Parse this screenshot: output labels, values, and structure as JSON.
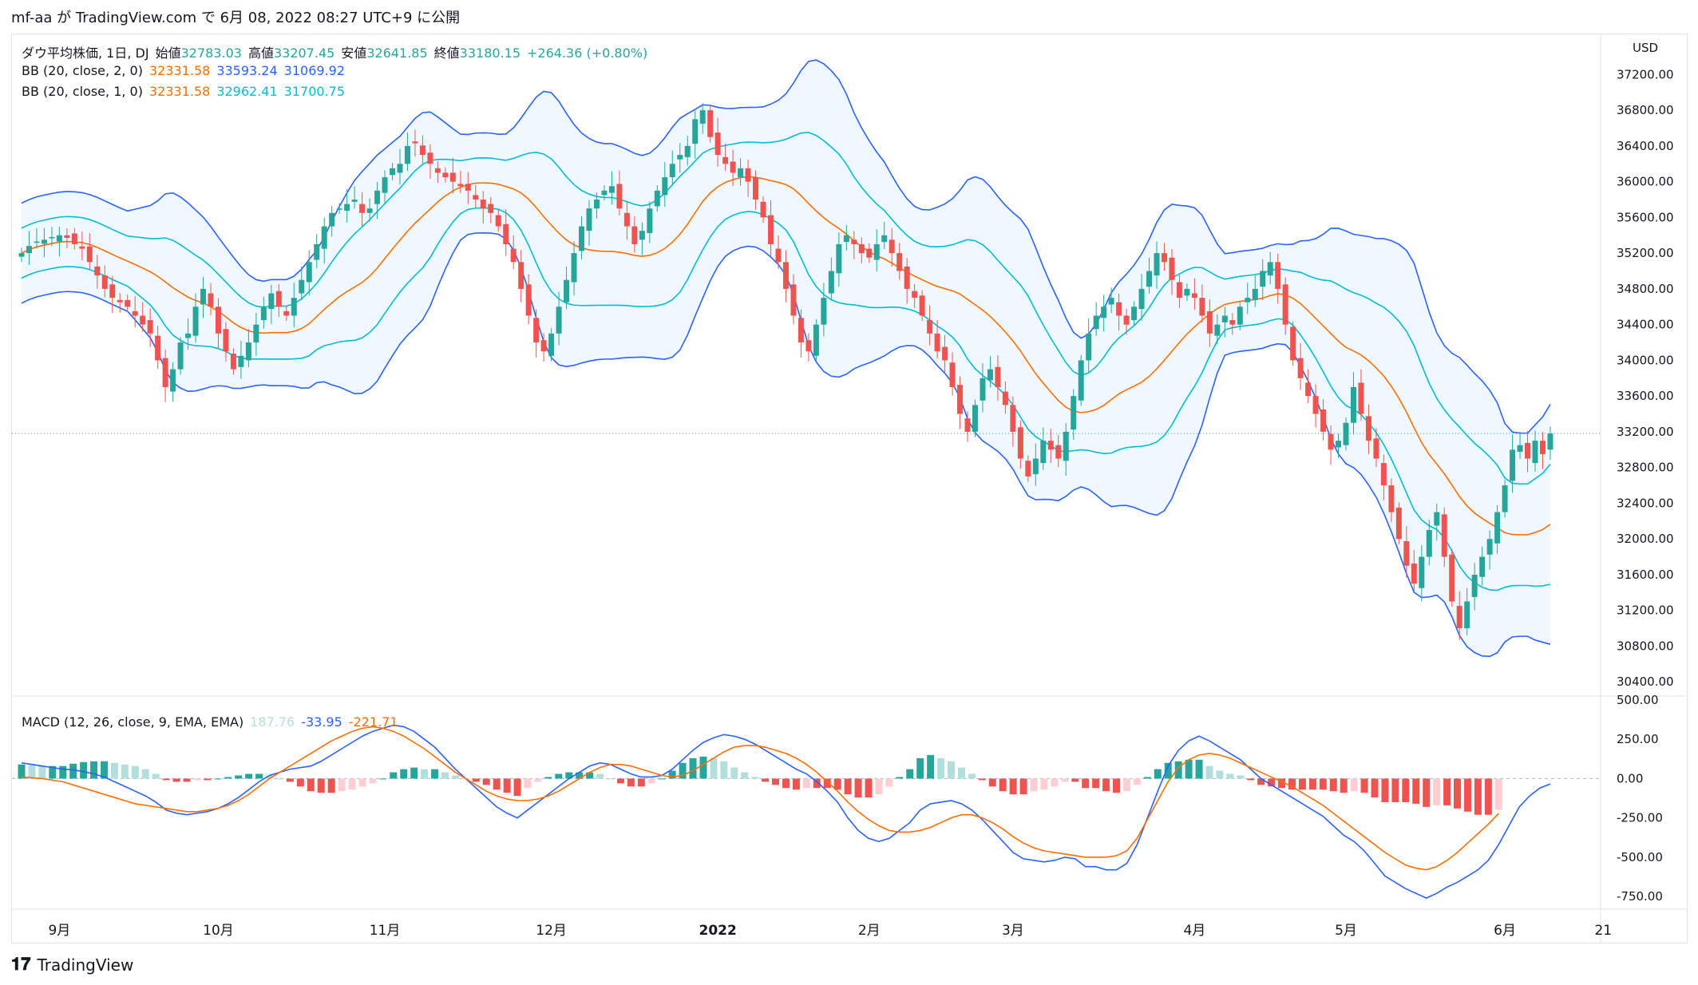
{
  "header": {
    "publish_text": "mf-aa が TradingView.com で 6月 08, 2022 08:27 UTC+9 に公開"
  },
  "legend_main": {
    "symbol": "ダウ平均株価, 1日, DJ",
    "open_label": "始値",
    "open": "32783.03",
    "high_label": "高値",
    "high": "33207.45",
    "low_label": "安値",
    "low": "32641.85",
    "close_label": "終値",
    "close": "33180.15",
    "change": "+264.36 (+0.80%)"
  },
  "legend_bb2": {
    "name": "BB (20, close, 2, 0)",
    "basis": "32331.58",
    "upper": "33593.24",
    "lower": "31069.92"
  },
  "legend_bb1": {
    "name": "BB (20, close, 1, 0)",
    "basis": "32331.58",
    "upper": "32962.41",
    "lower": "31700.75"
  },
  "legend_macd": {
    "name": "MACD (12, 26, close, 9, EMA, EMA)",
    "hist": "187.76",
    "macd": "-33.95",
    "signal": "-221.71"
  },
  "footer": {
    "brand": "TradingView",
    "logo_glyph": "𝟏𝟕"
  },
  "colors": {
    "up": "#26a69a",
    "down": "#ef5350",
    "bb_outer": "#2962ff",
    "bb_inner": "#00bcd4",
    "basis": "#ff6d00",
    "hist_up_strong": "#26a69a",
    "hist_up_weak": "#b2dfdb",
    "hist_down_strong": "#ef5350",
    "hist_down_weak": "#ffcdd2"
  },
  "chart_data": {
    "type": "candlestick",
    "currency": "USD",
    "price_ticks": [
      "37200.00",
      "36800.00",
      "36400.00",
      "36000.00",
      "35600.00",
      "35200.00",
      "34800.00",
      "34400.00",
      "34000.00",
      "33600.00",
      "33200.00",
      "32800.00",
      "32400.00",
      "32000.00",
      "31600.00",
      "31200.00",
      "30800.00",
      "30400.00"
    ],
    "price_range": [
      30250,
      37650
    ],
    "macd_ticks": [
      "500.00",
      "250.00",
      "0.00",
      "-250.00",
      "-500.00",
      "-750.00"
    ],
    "macd_range": [
      -800,
      520
    ],
    "time_labels": [
      {
        "label": "9月",
        "bar": 5
      },
      {
        "label": "10月",
        "bar": 26
      },
      {
        "label": "11月",
        "bar": 48
      },
      {
        "label": "12月",
        "bar": 70
      },
      {
        "label": "2022",
        "bar": 92
      },
      {
        "label": "2月",
        "bar": 112
      },
      {
        "label": "3月",
        "bar": 131
      },
      {
        "label": "4月",
        "bar": 155
      },
      {
        "label": "5月",
        "bar": 175
      },
      {
        "label": "6月",
        "bar": 196
      },
      {
        "label": "21",
        "bar": 209
      }
    ],
    "closes": [
      35200,
      35280,
      35330,
      35350,
      35380,
      35400,
      35370,
      35300,
      35250,
      35100,
      34950,
      34800,
      34700,
      34650,
      34600,
      34500,
      34400,
      34300,
      34000,
      33700,
      33900,
      34200,
      34300,
      34600,
      34800,
      34600,
      34300,
      34100,
      33900,
      34050,
      34200,
      34400,
      34600,
      34750,
      34600,
      34500,
      34700,
      34900,
      35100,
      35300,
      35500,
      35650,
      35700,
      35750,
      35800,
      35650,
      35700,
      35900,
      36050,
      36150,
      36200,
      36400,
      36430,
      36300,
      36200,
      36100,
      36050,
      36000,
      35950,
      35900,
      35800,
      35700,
      35650,
      35500,
      35300,
      35100,
      34800,
      34500,
      34200,
      34100,
      34300,
      34600,
      34900,
      35200,
      35500,
      35700,
      35800,
      35900,
      35950,
      35700,
      35500,
      35300,
      35450,
      35700,
      35900,
      36050,
      36200,
      36300,
      36400,
      36700,
      36800,
      36500,
      36300,
      36200,
      36100,
      36150,
      36000,
      35800,
      35600,
      35300,
      35100,
      34800,
      34500,
      34200,
      34100,
      34400,
      34700,
      35000,
      35300,
      35400,
      35300,
      35200,
      35150,
      35300,
      35400,
      35200,
      35000,
      34800,
      34700,
      34500,
      34300,
      34100,
      34000,
      33700,
      33400,
      33200,
      33500,
      33800,
      33900,
      33700,
      33500,
      33200,
      32900,
      32700,
      32900,
      33100,
      33000,
      32900,
      33200,
      33600,
      34000,
      34300,
      34500,
      34600,
      34700,
      34500,
      34400,
      34600,
      34800,
      35000,
      35200,
      35100,
      34900,
      34700,
      34800,
      34700,
      34500,
      34300,
      34400,
      34500,
      34400,
      34600,
      34700,
      34800,
      35000,
      35100,
      34800,
      34400,
      34000,
      33800,
      33600,
      33400,
      33200,
      33000,
      33100,
      33300,
      33700,
      33400,
      33100,
      32900,
      32600,
      32300,
      32000,
      31700,
      31500,
      31800,
      32100,
      32300,
      31800,
      31300,
      31000,
      31300,
      31600,
      31800,
      32000,
      32300,
      32600,
      33000,
      33050,
      32900,
      33100,
      32950,
      33180
    ],
    "macd_line": [
      100,
      90,
      80,
      70,
      60,
      55,
      45,
      30,
      10,
      -20,
      -50,
      -80,
      -110,
      -150,
      -200,
      -220,
      -230,
      -220,
      -210,
      -190,
      -160,
      -120,
      -70,
      -20,
      20,
      40,
      60,
      70,
      80,
      110,
      150,
      190,
      230,
      270,
      300,
      320,
      340,
      330,
      300,
      250,
      200,
      130,
      60,
      0,
      -60,
      -120,
      -180,
      -220,
      -250,
      -200,
      -150,
      -100,
      -50,
      0,
      40,
      80,
      100,
      90,
      60,
      30,
      10,
      10,
      20,
      60,
      120,
      180,
      230,
      260,
      280,
      270,
      250,
      220,
      180,
      140,
      100,
      60,
      30,
      -20,
      -80,
      -150,
      -250,
      -330,
      -380,
      -400,
      -380,
      -330,
      -280,
      -200,
      -160,
      -150,
      -140,
      -160,
      -200,
      -260,
      -330,
      -400,
      -470,
      -510,
      -520,
      -530,
      -520,
      -500,
      -510,
      -560,
      -560,
      -580,
      -580,
      -540,
      -420,
      -250,
      -80,
      80,
      180,
      240,
      270,
      240,
      200,
      160,
      120,
      60,
      0,
      -40,
      -80,
      -120,
      -160,
      -200,
      -240,
      -300,
      -360,
      -400,
      -460,
      -540,
      -620,
      -660,
      -700,
      -730,
      -760,
      -730,
      -690,
      -660,
      -620,
      -580,
      -520,
      -420,
      -300,
      -180,
      -110,
      -60,
      -33.95
    ],
    "signal_line": [
      10,
      5,
      0,
      -10,
      -20,
      -40,
      -60,
      -80,
      -100,
      -120,
      -140,
      -160,
      -170,
      -180,
      -190,
      -200,
      -210,
      -210,
      -200,
      -190,
      -170,
      -140,
      -100,
      -50,
      0,
      40,
      80,
      120,
      160,
      200,
      240,
      270,
      300,
      320,
      330,
      320,
      300,
      270,
      230,
      190,
      140,
      90,
      40,
      0,
      -40,
      -80,
      -110,
      -130,
      -140,
      -140,
      -130,
      -110,
      -80,
      -40,
      0,
      40,
      70,
      90,
      90,
      80,
      60,
      40,
      20,
      10,
      20,
      50,
      90,
      130,
      170,
      200,
      210,
      210,
      200,
      180,
      160,
      130,
      90,
      40,
      -20,
      -80,
      -150,
      -210,
      -260,
      -300,
      -330,
      -340,
      -340,
      -330,
      -310,
      -280,
      -250,
      -230,
      -230,
      -250,
      -280,
      -320,
      -370,
      -410,
      -440,
      -460,
      -470,
      -480,
      -490,
      -500,
      -500,
      -500,
      -490,
      -460,
      -380,
      -260,
      -140,
      -20,
      70,
      120,
      150,
      160,
      150,
      130,
      100,
      70,
      40,
      10,
      -20,
      -50,
      -90,
      -130,
      -170,
      -220,
      -270,
      -320,
      -370,
      -420,
      -470,
      -510,
      -550,
      -570,
      -580,
      -560,
      -520,
      -470,
      -410,
      -350,
      -290,
      -221.71
    ]
  }
}
